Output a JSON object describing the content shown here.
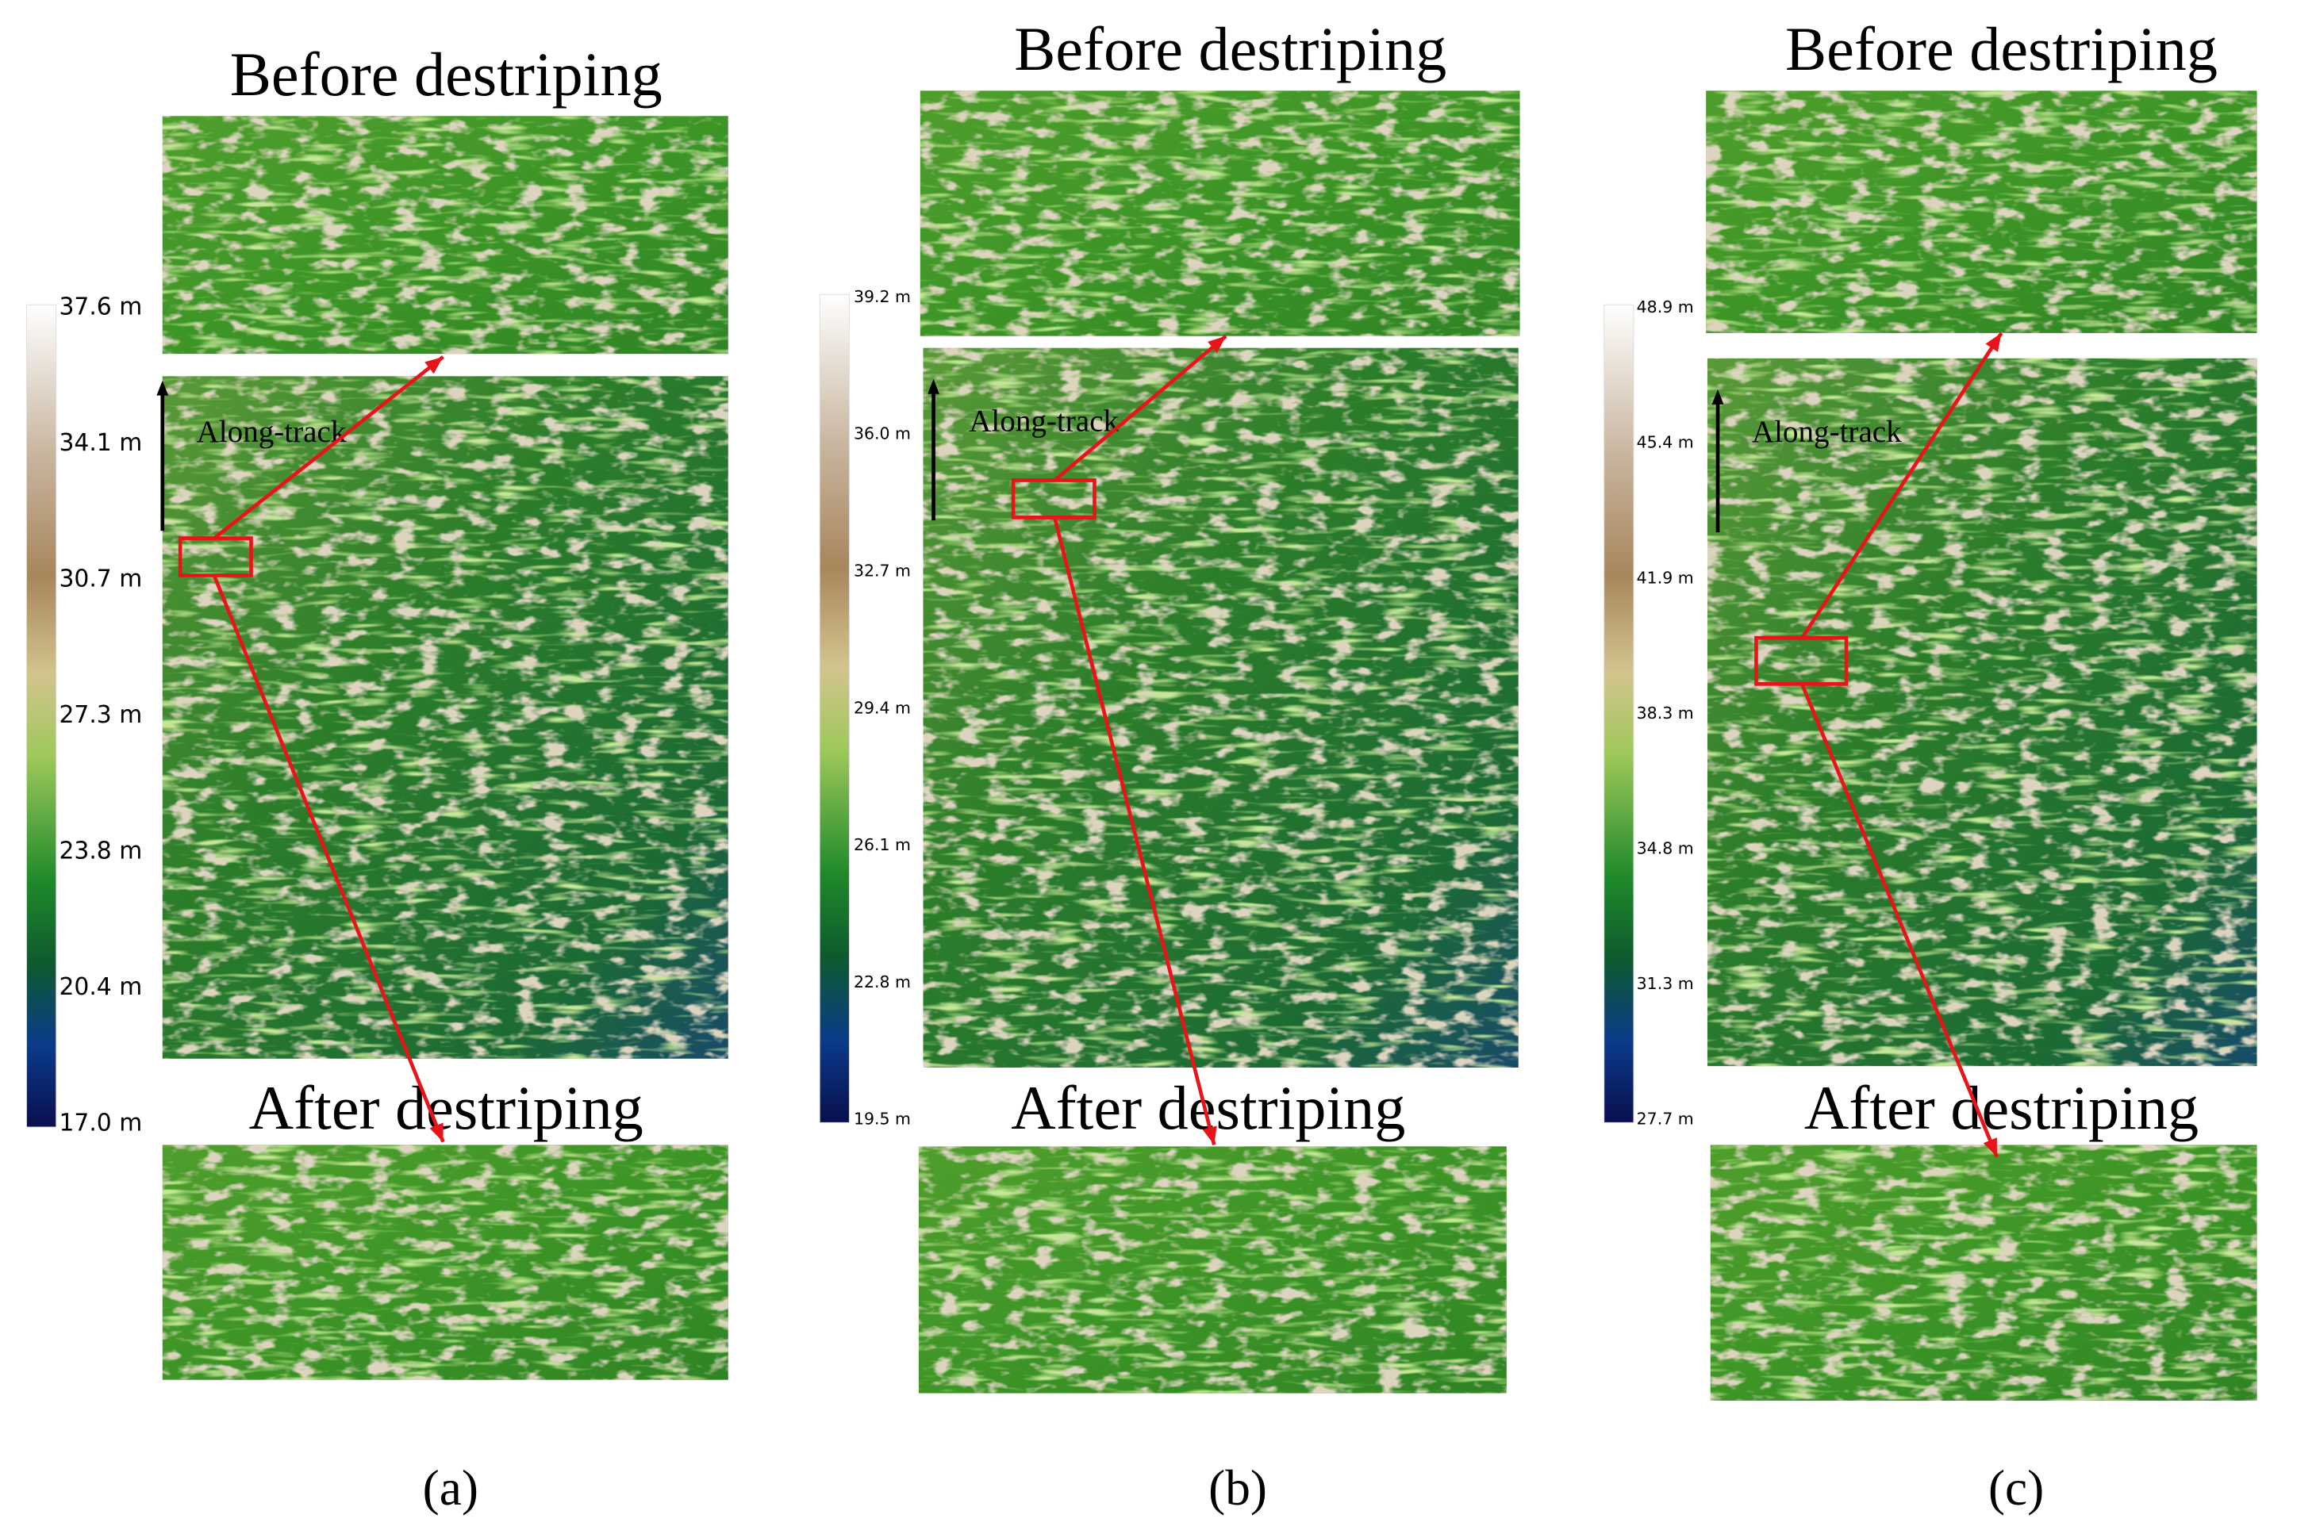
{
  "panels": [
    {
      "before_title": "Before destriping",
      "after_title": "After destriping",
      "along_track": "Along-track",
      "colorbar": [
        "37.6 m",
        "34.1 m",
        "30.7 m",
        "27.3 m",
        "23.8 m",
        "20.4 m",
        "17.0 m"
      ],
      "caption": "(a)"
    },
    {
      "before_title": "Before destriping",
      "after_title": "After destriping",
      "along_track": "Along-track",
      "colorbar": [
        "39.2 m",
        "36.0 m",
        "32.7 m",
        "29.4 m",
        "26.1 m",
        "22.8 m",
        "19.5 m"
      ],
      "caption": "(b)"
    },
    {
      "before_title": "Before destriping",
      "after_title": "After destriping",
      "along_track": "Along-track",
      "colorbar": [
        "48.9 m",
        "45.4 m",
        "41.9 m",
        "38.3 m",
        "34.8 m",
        "31.3 m",
        "27.7 m"
      ],
      "caption": "(c)"
    }
  ]
}
